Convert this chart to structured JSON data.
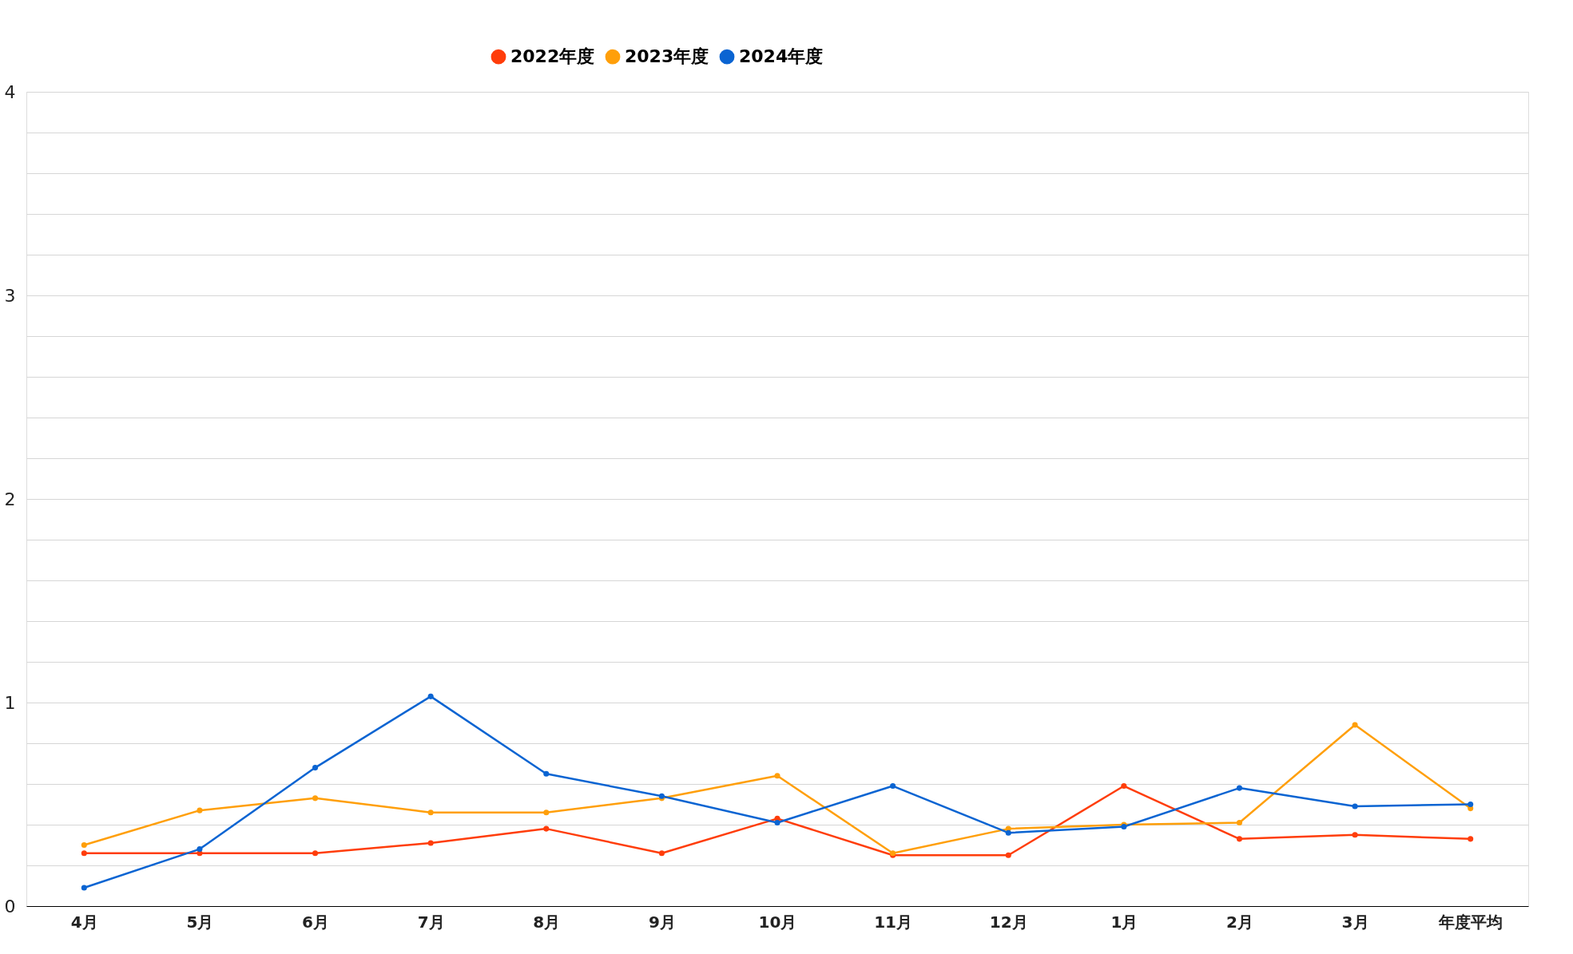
{
  "chart_data": {
    "type": "line",
    "categories": [
      "4月",
      "5月",
      "6月",
      "7月",
      "8月",
      "9月",
      "10月",
      "11月",
      "12月",
      "1月",
      "2月",
      "3月",
      "年度平均"
    ],
    "series": [
      {
        "name": "2022年度",
        "color": "#ff3d0a",
        "values": [
          0.26,
          0.26,
          0.26,
          0.31,
          0.38,
          0.26,
          0.43,
          0.25,
          0.25,
          0.59,
          0.33,
          0.35,
          0.33
        ]
      },
      {
        "name": "2023年度",
        "color": "#ff9f0a",
        "values": [
          0.3,
          0.47,
          0.53,
          0.46,
          0.46,
          0.53,
          0.64,
          0.26,
          0.38,
          0.4,
          0.41,
          0.89,
          0.48
        ]
      },
      {
        "name": "2024年度",
        "color": "#0a64d2",
        "values": [
          0.09,
          0.28,
          0.68,
          1.03,
          0.65,
          0.54,
          0.41,
          0.59,
          0.36,
          0.39,
          0.58,
          0.49,
          0.5
        ]
      }
    ],
    "ylim": [
      0,
      4
    ],
    "yticks": [
      0,
      {
        "value": 0.2,
        "label": null
      },
      {
        "value": 0.4,
        "label": null
      },
      {
        "value": 0.6,
        "label": null
      },
      {
        "value": 0.8,
        "label": null
      },
      1,
      {
        "value": 1.2,
        "label": null
      },
      {
        "value": 1.4,
        "label": null
      },
      {
        "value": 1.6,
        "label": null
      },
      {
        "value": 1.8,
        "label": null
      },
      2,
      {
        "value": 2.2,
        "label": null
      },
      {
        "value": 2.4,
        "label": null
      },
      {
        "value": 2.6,
        "label": null
      },
      {
        "value": 2.8,
        "label": null
      },
      3,
      {
        "value": 3.2,
        "label": null
      },
      {
        "value": 3.4,
        "label": null
      },
      {
        "value": 3.6,
        "label": null
      },
      {
        "value": 3.8,
        "label": null
      },
      4
    ],
    "grid": "y",
    "legend": "top",
    "marker": "circle",
    "line_style": "solid"
  }
}
